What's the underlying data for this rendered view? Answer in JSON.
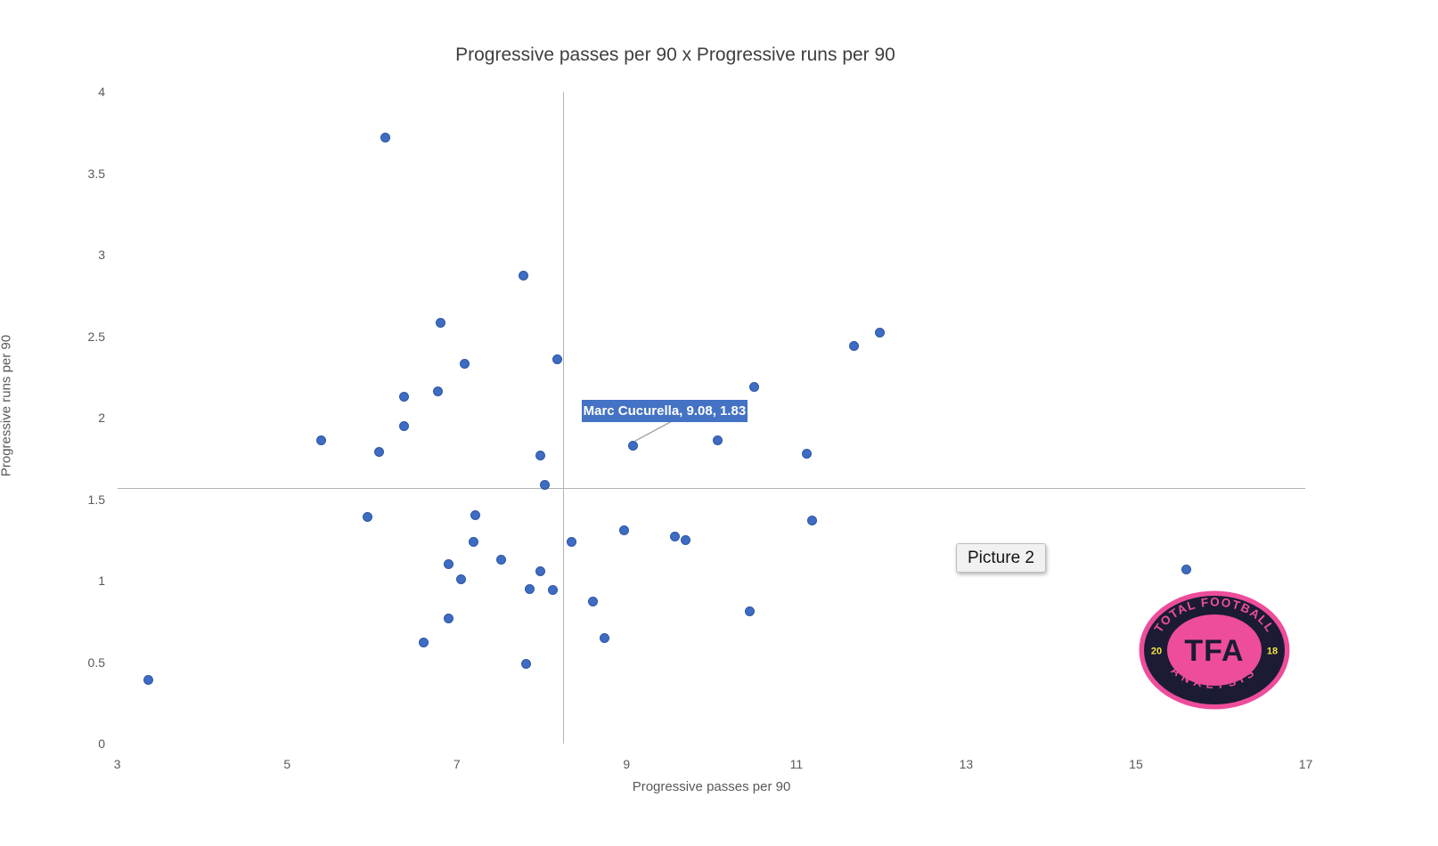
{
  "chart_data": {
    "type": "scatter",
    "title": "Progressive passes per 90 x Progressive runs per 90",
    "xlabel": "Progressive passes per 90",
    "ylabel": "Progressive runs per 90",
    "xlim": [
      3,
      17
    ],
    "ylim": [
      0,
      4
    ],
    "x_ticks": [
      3,
      5,
      7,
      9,
      11,
      13,
      15,
      17
    ],
    "y_ticks": [
      0,
      0.5,
      1,
      1.5,
      2,
      2.5,
      3,
      3.5,
      4
    ],
    "grid": false,
    "legend": "none",
    "point_color": "#4472C4",
    "reference_lines": {
      "vertical_x": 8.25,
      "horizontal_y": 1.57
    },
    "labeled_point": {
      "name": "Marc Cucurella",
      "x": 9.08,
      "y": 1.83,
      "label": "Marc Cucurella, 9.08, 1.83"
    },
    "points": [
      [
        6.16,
        3.72
      ],
      [
        7.78,
        2.87
      ],
      [
        6.81,
        2.58
      ],
      [
        11.98,
        2.52
      ],
      [
        11.68,
        2.44
      ],
      [
        8.18,
        2.36
      ],
      [
        7.09,
        2.33
      ],
      [
        10.5,
        2.19
      ],
      [
        6.78,
        2.16
      ],
      [
        6.38,
        2.13
      ],
      [
        6.38,
        1.95
      ],
      [
        5.4,
        1.86
      ],
      [
        10.07,
        1.86
      ],
      [
        6.08,
        1.79
      ],
      [
        11.12,
        1.78
      ],
      [
        7.98,
        1.77
      ],
      [
        8.04,
        1.59
      ],
      [
        7.22,
        1.4
      ],
      [
        5.95,
        1.39
      ],
      [
        11.19,
        1.37
      ],
      [
        8.97,
        1.31
      ],
      [
        9.57,
        1.27
      ],
      [
        9.69,
        1.25
      ],
      [
        7.2,
        1.24
      ],
      [
        8.35,
        1.24
      ],
      [
        7.52,
        1.13
      ],
      [
        6.9,
        1.1
      ],
      [
        15.59,
        1.07
      ],
      [
        7.98,
        1.06
      ],
      [
        7.05,
        1.01
      ],
      [
        7.86,
        0.95
      ],
      [
        8.13,
        0.94
      ],
      [
        8.6,
        0.87
      ],
      [
        10.45,
        0.81
      ],
      [
        6.9,
        0.77
      ],
      [
        8.74,
        0.65
      ],
      [
        6.61,
        0.62
      ],
      [
        7.82,
        0.49
      ],
      [
        3.37,
        0.39
      ]
    ]
  },
  "annotations": {
    "picture_label": "Picture 2"
  },
  "logo": {
    "top_text": "TOTAL FOOTBALL",
    "bottom_text": "ANALYSIS",
    "center_text": "TFA",
    "left_year": "20",
    "right_year": "18",
    "pink": "#EE4D9B",
    "navy": "#1B1B35",
    "yellow": "#F2E33C"
  }
}
